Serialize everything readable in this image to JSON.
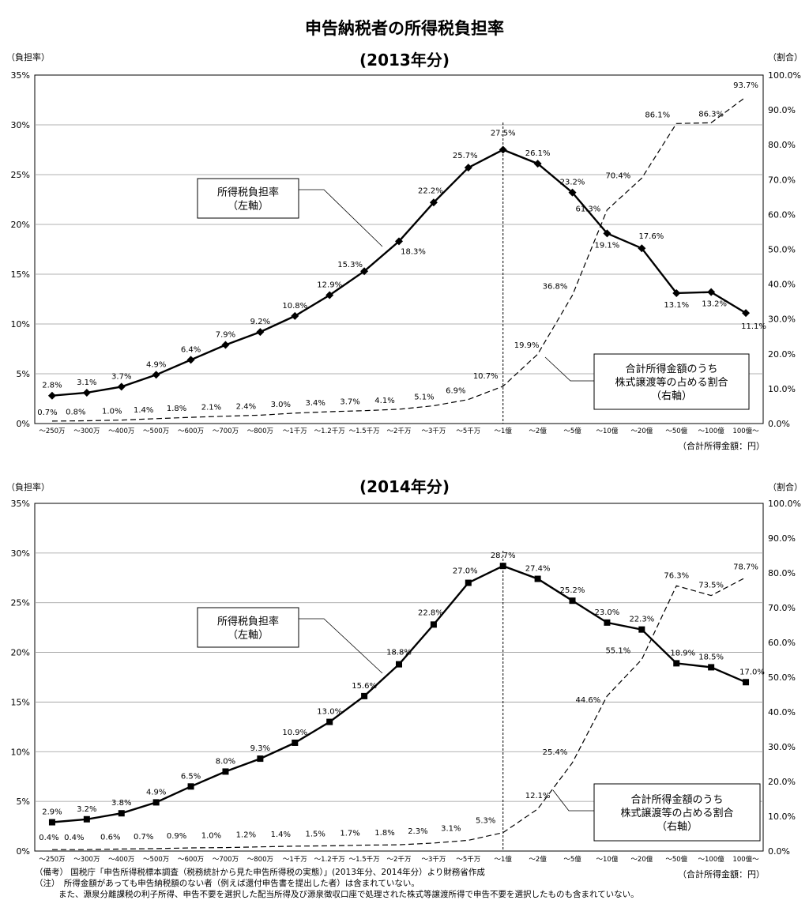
{
  "title": "申告納税者の所得税負担率",
  "chart_data": [
    {
      "type": "line",
      "title": "(2013年分)",
      "ylabel_left": "（負担率）",
      "ylabel_right": "（割合）",
      "xlabel": "（合計所得金額：円）",
      "ylim_left": [
        0,
        35
      ],
      "ylim_right": [
        0,
        100
      ],
      "yticks_left": [
        "0%",
        "5%",
        "10%",
        "15%",
        "20%",
        "25%",
        "30%",
        "35%"
      ],
      "yticks_right": [
        "0.0%",
        "10.0%",
        "20.0%",
        "30.0%",
        "40.0%",
        "50.0%",
        "60.0%",
        "70.0%",
        "80.0%",
        "90.0%",
        "100.0%"
      ],
      "grid": true,
      "categories": [
        "～250万",
        "～300万",
        "～400万",
        "～500万",
        "～600万",
        "～700万",
        "～800万",
        "～1千万",
        "～1.2千万",
        "～1.5千万",
        "～2千万",
        "～3千万",
        "～5千万",
        "～1億",
        "～2億",
        "～5億",
        "～10億",
        "～20億",
        "～50億",
        "～100億",
        "100億～"
      ],
      "series": [
        {
          "name": "所得税負担率",
          "axis": "left",
          "marker": "diamond",
          "values": [
            2.8,
            3.1,
            3.7,
            4.9,
            6.4,
            7.9,
            9.2,
            10.8,
            12.9,
            15.3,
            18.3,
            22.2,
            25.7,
            27.5,
            26.1,
            23.2,
            19.1,
            17.6,
            13.1,
            13.2,
            11.1
          ],
          "labels": [
            "2.8%",
            "3.1%",
            "3.7%",
            "4.9%",
            "6.4%",
            "7.9%",
            "9.2%",
            "10.8%",
            "12.9%",
            "15.3%",
            "18.3%",
            "22.2%",
            "25.7%",
            "27.5%",
            "26.1%",
            "23.2%",
            "19.1%",
            "17.6%",
            "13.1%",
            "13.2%",
            "11.1%"
          ]
        },
        {
          "name": "合計所得金額のうち株式譲渡等の占める割合",
          "axis": "right",
          "style": "dashed",
          "values": [
            0.7,
            0.8,
            1.0,
            1.4,
            1.8,
            2.1,
            2.4,
            3.0,
            3.4,
            3.7,
            4.1,
            5.1,
            6.9,
            10.7,
            19.9,
            36.8,
            61.3,
            70.4,
            86.1,
            86.3,
            93.7
          ],
          "labels": [
            "0.7%",
            "0.8%",
            "1.0%",
            "1.4%",
            "1.8%",
            "2.1%",
            "2.4%",
            "3.0%",
            "3.4%",
            "3.7%",
            "4.1%",
            "5.1%",
            "6.9%",
            "10.7%",
            "19.9%",
            "36.8%",
            "61.3%",
            "70.4%",
            "86.1%",
            "86.3%",
            "93.7%"
          ]
        }
      ],
      "callouts": [
        {
          "lines": [
            "所得税負担率",
            "（左軸）"
          ]
        },
        {
          "lines": [
            "合計所得金額のうち",
            "株式譲渡等の占める割合",
            "（右軸）"
          ]
        }
      ]
    },
    {
      "type": "line",
      "title": "(2014年分)",
      "ylabel_left": "（負担率）",
      "ylabel_right": "（割合）",
      "xlabel": "（合計所得金額：円）",
      "ylim_left": [
        0,
        35
      ],
      "ylim_right": [
        0,
        100
      ],
      "yticks_left": [
        "0%",
        "5%",
        "10%",
        "15%",
        "20%",
        "25%",
        "30%",
        "35%"
      ],
      "yticks_right": [
        "0.0%",
        "10.0%",
        "20.0%",
        "30.0%",
        "40.0%",
        "50.0%",
        "60.0%",
        "70.0%",
        "80.0%",
        "90.0%",
        "100.0%"
      ],
      "grid": true,
      "categories": [
        "～250万",
        "～300万",
        "～400万",
        "～500万",
        "～600万",
        "～700万",
        "～800万",
        "～1千万",
        "～1.2千万",
        "～1.5千万",
        "～2千万",
        "～3千万",
        "～5千万",
        "～1億",
        "～2億",
        "～5億",
        "～10億",
        "～20億",
        "～50億",
        "～100億",
        "100億～"
      ],
      "series": [
        {
          "name": "所得税負担率",
          "axis": "left",
          "marker": "square",
          "values": [
            2.9,
            3.2,
            3.8,
            4.9,
            6.5,
            8.0,
            9.3,
            10.9,
            13.0,
            15.6,
            18.8,
            22.8,
            27.0,
            28.7,
            27.4,
            25.2,
            23.0,
            22.3,
            18.9,
            18.5,
            17.0
          ],
          "labels": [
            "2.9%",
            "3.2%",
            "3.8%",
            "4.9%",
            "6.5%",
            "8.0%",
            "9.3%",
            "10.9%",
            "13.0%",
            "15.6%",
            "18.8%",
            "22.8%",
            "27.0%",
            "28.7%",
            "27.4%",
            "25.2%",
            "23.0%",
            "22.3%",
            "18.9%",
            "18.5%",
            "17.0%"
          ]
        },
        {
          "name": "合計所得金額のうち株式譲渡等の占める割合",
          "axis": "right",
          "style": "dashed",
          "values": [
            0.4,
            0.4,
            0.6,
            0.7,
            0.9,
            1.0,
            1.2,
            1.4,
            1.5,
            1.7,
            1.8,
            2.3,
            3.1,
            5.3,
            12.1,
            25.4,
            44.6,
            55.1,
            76.3,
            73.5,
            78.7
          ],
          "labels": [
            "0.4%",
            "0.4%",
            "0.6%",
            "0.7%",
            "0.9%",
            "1.0%",
            "1.2%",
            "1.4%",
            "1.5%",
            "1.7%",
            "1.8%",
            "2.3%",
            "3.1%",
            "5.3%",
            "12.1%",
            "25.4%",
            "44.6%",
            "55.1%",
            "76.3%",
            "73.5%",
            "78.7%"
          ]
        }
      ],
      "callouts": [
        {
          "lines": [
            "所得税負担率",
            "（左軸）"
          ]
        },
        {
          "lines": [
            "合計所得金額のうち",
            "株式譲渡等の占める割合",
            "（右軸）"
          ]
        }
      ]
    }
  ],
  "notes": [
    "（備考） 国税庁「申告所得税標本調査（税務統計から見た申告所得税の実態）」(2013年分、2014年分）より財務省作成",
    "（注）　所得金額があっても申告納税額のない者（例えば還付申告書を提出した者）は含まれていない。",
    "また、源泉分離課税の利子所得、申告不要を選択した配当所得及び源泉徴収口座で処理された株式等譲渡所得で申告不要を選択したものも含まれていない。"
  ]
}
